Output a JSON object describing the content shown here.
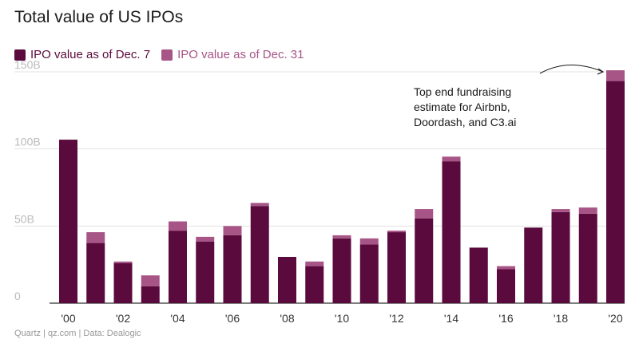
{
  "chart_data": {
    "type": "bar",
    "stacked": true,
    "title": "Total value of US IPOs",
    "categories": [
      "2000",
      "2001",
      "2002",
      "2003",
      "2004",
      "2005",
      "2006",
      "2007",
      "2008",
      "2009",
      "2010",
      "2011",
      "2012",
      "2013",
      "2014",
      "2015",
      "2016",
      "2017",
      "2018",
      "2019",
      "2020"
    ],
    "tick_labels": [
      "'00",
      "",
      "'02",
      "",
      "'04",
      "",
      "'06",
      "",
      "'08",
      "",
      "'10",
      "",
      "'12",
      "",
      "'14",
      "",
      "'16",
      "",
      "'18",
      "",
      "'20"
    ],
    "series": [
      {
        "name": "IPO value as of Dec. 7",
        "color": "#5a0a3c",
        "values": [
          106,
          39,
          26,
          11,
          47,
          40,
          44,
          63,
          30,
          24,
          42,
          38,
          46,
          55,
          92,
          36,
          22,
          49,
          59,
          58,
          144
        ]
      },
      {
        "name": "IPO value as of Dec. 31",
        "color": "#a75587",
        "values": [
          0,
          7,
          1,
          7,
          6,
          3,
          6,
          2,
          0,
          3,
          2,
          4,
          1,
          6,
          3,
          0,
          2,
          0,
          2,
          4,
          7
        ]
      }
    ],
    "ylim": [
      0,
      150
    ],
    "y_ticks": [
      0,
      50,
      100,
      150
    ],
    "y_tick_labels": [
      "0",
      "50B",
      "100B",
      "150B"
    ],
    "xlabel": "",
    "ylabel": "",
    "grid": true,
    "legend": "top-left"
  },
  "annotation": {
    "lines": [
      "Top end fundraising",
      "estimate for Airbnb,",
      "Doordash, and C3.ai"
    ]
  },
  "footer": {
    "text": "Quartz | qz.com | Data: Dealogic"
  }
}
